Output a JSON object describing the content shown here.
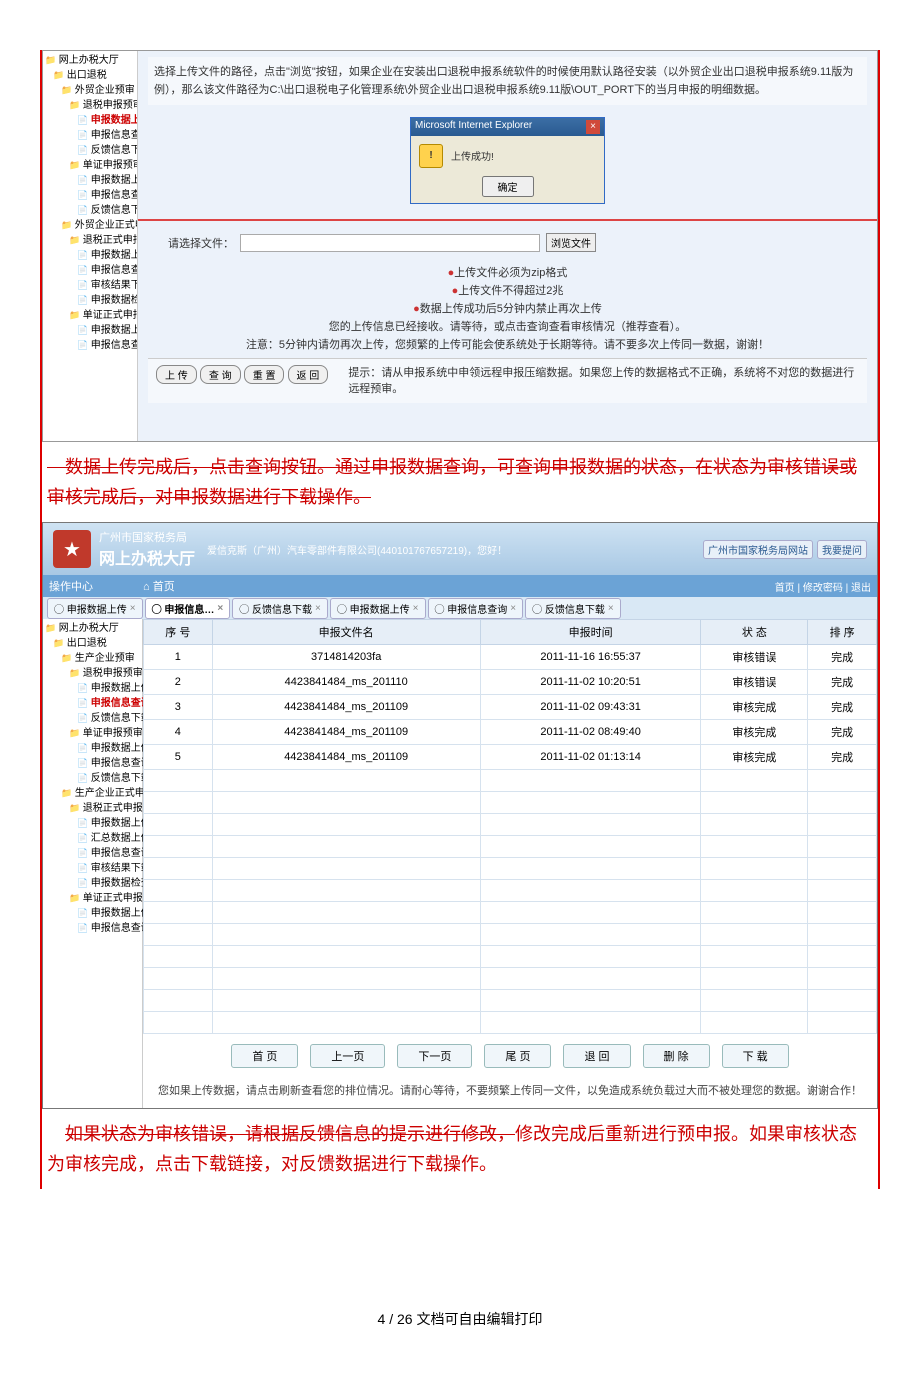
{
  "tree1": [
    {
      "i": 0,
      "c": "folder",
      "t": "网上办税大厅"
    },
    {
      "i": 1,
      "c": "folder",
      "t": "出口退税"
    },
    {
      "i": 2,
      "c": "folder",
      "t": "外贸企业预审"
    },
    {
      "i": 3,
      "c": "folder",
      "t": "退税申报预审"
    },
    {
      "i": 4,
      "c": "leaf",
      "t": "申报数据上传",
      "active": true
    },
    {
      "i": 4,
      "c": "leaf",
      "t": "申报信息查询"
    },
    {
      "i": 4,
      "c": "leaf",
      "t": "反馈信息下载"
    },
    {
      "i": 3,
      "c": "folder",
      "t": "单证申报预审"
    },
    {
      "i": 4,
      "c": "leaf",
      "t": "申报数据上传"
    },
    {
      "i": 4,
      "c": "leaf",
      "t": "申报信息查询"
    },
    {
      "i": 4,
      "c": "leaf",
      "t": "反馈信息下载"
    },
    {
      "i": 2,
      "c": "folder",
      "t": "外贸企业正式申报"
    },
    {
      "i": 3,
      "c": "folder",
      "t": "退税正式申报"
    },
    {
      "i": 4,
      "c": "leaf",
      "t": "申报数据上传"
    },
    {
      "i": 4,
      "c": "leaf",
      "t": "申报信息查询"
    },
    {
      "i": 4,
      "c": "leaf",
      "t": "审核结果下载"
    },
    {
      "i": 4,
      "c": "leaf",
      "t": "申报数据检查与"
    },
    {
      "i": 3,
      "c": "folder",
      "t": "单证正式申报"
    },
    {
      "i": 4,
      "c": "leaf",
      "t": "申报数据上传"
    },
    {
      "i": 4,
      "c": "leaf",
      "t": "申报信息查询"
    }
  ],
  "instr": "选择上传文件的路径，点击\"浏览\"按钮，如果企业在安装出口退税申报系统软件的时候使用默认路径安装（以外贸企业出口退税申报系统9.11版为例），那么该文件路径为C:\\出口退税电子化管理系统\\外贸企业出口退税申报系统9.11版\\OUT_PORT下的当月申报的明细数据。",
  "dialog": {
    "title": "Microsoft Internet Explorer",
    "msg": "上传成功!",
    "ok": "确定"
  },
  "file": {
    "label": "请选择文件：",
    "browse": "浏览文件"
  },
  "notes": [
    "上传文件必须为zip格式",
    "上传文件不得超过2兆",
    "数据上传成功后5分钟内禁止再次上传"
  ],
  "note_line1": "您的上传信息已经接收。请等待，或点击查询查看审核情况（推荐查看）。",
  "note_line2": "注意：5分钟内请勿再次上传，您频繁的上传可能会使系统处于长期等待。请不要多次上传同一数据，谢谢！",
  "bottom_btns": [
    "上 传",
    "查 询",
    "重 置",
    "返 回"
  ],
  "bottom_hint_label": "提示：",
  "bottom_hint": "请从申报系统中申领远程申报压缩数据。如果您上传的数据格式不正确，系统将不对您的数据进行远程预审。",
  "para1": "数据上传完成后，点击查询按钮。通过申报数据查询，可查询申报数据的状态，在状态为审核错误或审核完成后，对申报数据进行下载操作。",
  "header": {
    "org": "广州市国家税务局",
    "sys": "网上办税大厅",
    "welcome": "爱信克斯（广州）汽车零部件有限公司(440101767657219)，您好！",
    "link1": "广州市国家税务局网站",
    "link2": "我要提问"
  },
  "toolbar": {
    "ops": "操作中心",
    "home": "首页",
    "links": [
      "首页",
      "修改密码",
      "退出"
    ]
  },
  "tabs": [
    "申报数据上传",
    "申报信息…",
    "反馈信息下载",
    "申报数据上传",
    "申报信息查询",
    "反馈信息下载"
  ],
  "active_tab_index": 1,
  "tree2": [
    {
      "i": 0,
      "c": "folder",
      "t": "网上办税大厅"
    },
    {
      "i": 1,
      "c": "folder",
      "t": "出口退税"
    },
    {
      "i": 2,
      "c": "folder",
      "t": "生产企业预审"
    },
    {
      "i": 3,
      "c": "folder",
      "t": "退税申报预审"
    },
    {
      "i": 4,
      "c": "leaf",
      "t": "申报数据上传"
    },
    {
      "i": 4,
      "c": "leaf",
      "t": "申报信息查询",
      "active": true
    },
    {
      "i": 4,
      "c": "leaf",
      "t": "反馈信息下载"
    },
    {
      "i": 3,
      "c": "folder",
      "t": "单证申报预审"
    },
    {
      "i": 4,
      "c": "leaf",
      "t": "申报数据上传"
    },
    {
      "i": 4,
      "c": "leaf",
      "t": "申报信息查询"
    },
    {
      "i": 4,
      "c": "leaf",
      "t": "反馈信息下载"
    },
    {
      "i": 2,
      "c": "folder",
      "t": "生产企业正式申报"
    },
    {
      "i": 3,
      "c": "folder",
      "t": "退税正式申报"
    },
    {
      "i": 4,
      "c": "leaf",
      "t": "申报数据上传"
    },
    {
      "i": 4,
      "c": "leaf",
      "t": "汇总数据上传"
    },
    {
      "i": 4,
      "c": "leaf",
      "t": "申报信息查询"
    },
    {
      "i": 4,
      "c": "leaf",
      "t": "审核结果下载"
    },
    {
      "i": 4,
      "c": "leaf",
      "t": "申报数据检查"
    },
    {
      "i": 3,
      "c": "folder",
      "t": "单证正式申报"
    },
    {
      "i": 4,
      "c": "leaf",
      "t": "申报数据上传"
    },
    {
      "i": 4,
      "c": "leaf",
      "t": "申报信息查询"
    }
  ],
  "columns": [
    "序 号",
    "申报文件名",
    "申报时间",
    "状 态",
    "排 序"
  ],
  "rows": [
    [
      "1",
      "3714814203fa",
      "2011-11-16 16:55:37",
      "审核错误",
      "完成"
    ],
    [
      "2",
      "4423841484_ms_201110",
      "2011-11-02 10:20:51",
      "审核错误",
      "完成"
    ],
    [
      "3",
      "4423841484_ms_201109",
      "2011-11-02 09:43:31",
      "审核完成",
      "完成"
    ],
    [
      "4",
      "4423841484_ms_201109",
      "2011-11-02 08:49:40",
      "审核完成",
      "完成"
    ],
    [
      "5",
      "4423841484_ms_201109",
      "2011-11-02 01:13:14",
      "审核完成",
      "完成"
    ]
  ],
  "empty_rows": 12,
  "pager": [
    "首 页",
    "上一页",
    "下一页",
    "尾 页",
    "退 回",
    "删 除",
    "下 载"
  ],
  "footnote": "您如果上传数据，请点击刷新查看您的排位情况。请耐心等待，不要频繁上传同一文件，以免造成系统负载过大而不被处理您的数据。谢谢合作！",
  "para2_strike": "如果状态为审核错误，请根据反馈信息的提示进行修改，",
  "para2_rest": "修改完成后重新进行预申报。如果审核状态为审核完成，点击下载链接，对反馈数据进行下载操作。",
  "page_footer": "4 / 26 文档可自由编辑打印"
}
